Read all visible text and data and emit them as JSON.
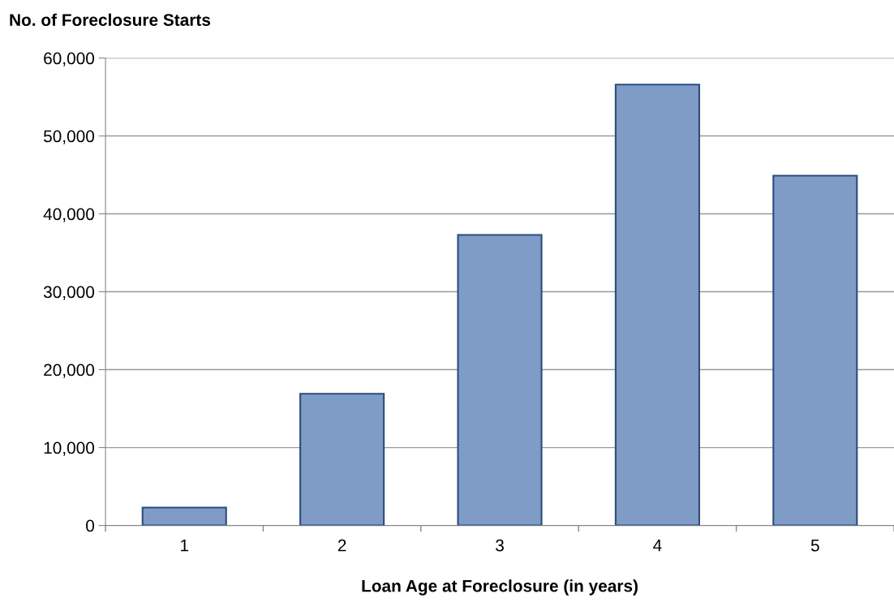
{
  "chart_data": {
    "type": "bar",
    "ylabel": "No. of Foreclosure Starts",
    "xlabel": "Loan Age at Foreclosure (in years)",
    "categories": [
      "1",
      "2",
      "3",
      "4",
      "5"
    ],
    "values": [
      2300,
      16900,
      37300,
      56600,
      44900
    ],
    "color": "#7f9cc6",
    "ylim": [
      0,
      60000
    ],
    "yticks": [
      {
        "value": 0,
        "label": "0"
      },
      {
        "value": 10000,
        "label": "10,000"
      },
      {
        "value": 20000,
        "label": "20,000"
      },
      {
        "value": 30000,
        "label": "30,000"
      },
      {
        "value": 40000,
        "label": "40,000"
      },
      {
        "value": 50000,
        "label": "50,000"
      },
      {
        "value": 60000,
        "label": "60,000"
      }
    ],
    "grid": "y",
    "legend": false
  }
}
